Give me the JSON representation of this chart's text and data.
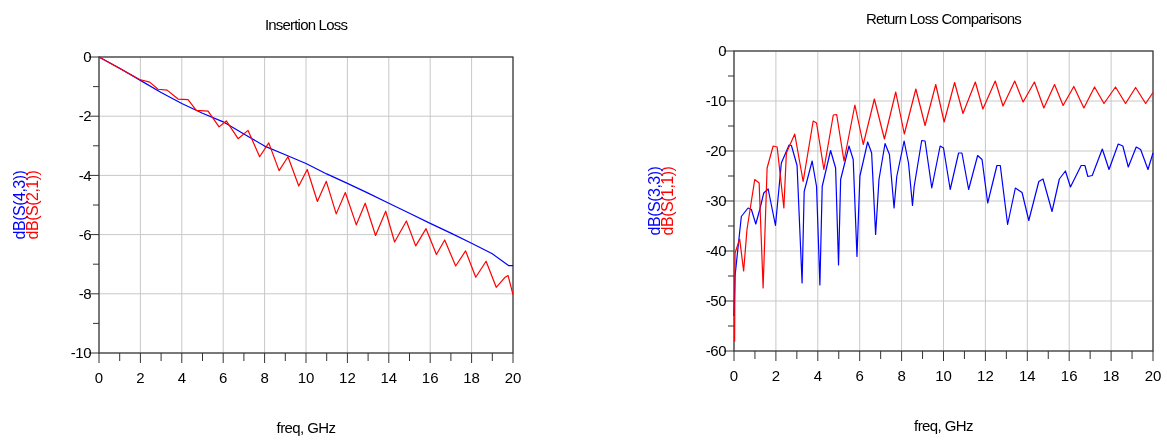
{
  "chart_data": [
    {
      "type": "line",
      "title": "Insertion Loss",
      "xlabel": "freq, GHz",
      "xlim": [
        0,
        20
      ],
      "ylim": [
        -10,
        0
      ],
      "grid": true,
      "xticks": [
        0,
        {
          "value": 1,
          "label": null
        },
        2,
        {
          "value": 3,
          "label": null
        },
        4,
        {
          "value": 5,
          "label": null
        },
        6,
        {
          "value": 7,
          "label": null
        },
        8,
        {
          "value": 9,
          "label": null
        },
        10,
        {
          "value": 11,
          "label": null
        },
        12,
        {
          "value": 13,
          "label": null
        },
        14,
        {
          "value": 15,
          "label": null
        },
        16,
        {
          "value": 17,
          "label": null
        },
        18,
        {
          "value": 19,
          "label": null
        },
        20
      ],
      "yticks": [
        -10,
        {
          "value": -9,
          "label": null
        },
        -8,
        {
          "value": -7,
          "label": null
        },
        -6,
        {
          "value": -5,
          "label": null
        },
        -4,
        {
          "value": -3,
          "label": null
        },
        -2,
        {
          "value": -1,
          "label": null
        },
        0
      ],
      "series": [
        {
          "name": "dB(S(4,3))",
          "color": "#0000ff",
          "x": [
            0,
            1,
            2,
            3,
            4,
            5,
            6,
            7,
            8,
            9,
            10,
            11,
            12,
            13,
            14,
            15,
            16,
            17,
            18,
            19,
            19.8,
            20
          ],
          "values": [
            0,
            -0.38,
            -0.79,
            -1.2,
            -1.57,
            -1.9,
            -2.19,
            -2.6,
            -3.01,
            -3.3,
            -3.6,
            -3.95,
            -4.27,
            -4.6,
            -4.94,
            -5.28,
            -5.62,
            -5.95,
            -6.29,
            -6.65,
            -7.05,
            -7.05
          ]
        },
        {
          "name": "dB(S(2,1))",
          "color": "#ff0000",
          "x": [
            0,
            1.96,
            2.45,
            2.85,
            3.29,
            3.82,
            4.3,
            4.7,
            5.27,
            5.8,
            6.15,
            6.72,
            7.2,
            7.76,
            8.2,
            8.7,
            9.13,
            9.65,
            10.06,
            10.55,
            10.98,
            11.46,
            11.9,
            12.43,
            12.86,
            13.36,
            13.85,
            14.28,
            14.85,
            15.3,
            15.8,
            16.3,
            16.7,
            17.23,
            17.71,
            18.2,
            18.7,
            19.19,
            19.6,
            19.76,
            20
          ],
          "values": [
            0,
            -0.76,
            -0.85,
            -1.09,
            -1.12,
            -1.42,
            -1.44,
            -1.8,
            -1.83,
            -2.36,
            -2.16,
            -2.76,
            -2.48,
            -3.37,
            -2.9,
            -3.84,
            -3.37,
            -4.36,
            -3.8,
            -4.88,
            -4.2,
            -5.3,
            -4.58,
            -5.67,
            -4.94,
            -6.03,
            -5.21,
            -6.25,
            -5.54,
            -6.38,
            -5.8,
            -6.67,
            -6.18,
            -7.06,
            -6.55,
            -7.44,
            -6.9,
            -7.78,
            -7.45,
            -7.38,
            -8.03
          ]
        }
      ]
    },
    {
      "type": "line",
      "title": "Return Loss Comparisons",
      "xlabel": "freq, GHz",
      "xlim": [
        0,
        20
      ],
      "ylim": [
        -60,
        0
      ],
      "grid": true,
      "xticks": [
        0,
        {
          "value": 1,
          "label": null
        },
        2,
        {
          "value": 3,
          "label": null
        },
        4,
        {
          "value": 5,
          "label": null
        },
        6,
        {
          "value": 7,
          "label": null
        },
        8,
        {
          "value": 9,
          "label": null
        },
        10,
        {
          "value": 11,
          "label": null
        },
        12,
        {
          "value": 13,
          "label": null
        },
        14,
        {
          "value": 15,
          "label": null
        },
        16,
        {
          "value": 17,
          "label": null
        },
        18,
        {
          "value": 19,
          "label": null
        },
        20
      ],
      "yticks": [
        -60,
        {
          "value": -55,
          "label": null
        },
        -50,
        {
          "value": -45,
          "label": null
        },
        -40,
        {
          "value": -35,
          "label": null
        },
        -30,
        {
          "value": -25,
          "label": null
        },
        -20,
        {
          "value": -15,
          "label": null
        },
        -10,
        {
          "value": -5,
          "label": null
        },
        0
      ],
      "series": [
        {
          "name": "dB(S(3,3))",
          "color": "#0000ff",
          "x": [
            0,
            0.05,
            0.19,
            0.35,
            0.67,
            0.83,
            1.04,
            1.23,
            1.42,
            1.63,
            1.98,
            2.26,
            2.63,
            2.74,
            3.01,
            3.25,
            3.35,
            3.73,
            3.94,
            4.1,
            4.21,
            4.61,
            4.85,
            4.99,
            5.09,
            5.49,
            5.69,
            5.87,
            6.01,
            6.38,
            6.57,
            6.76,
            6.92,
            7.21,
            7.42,
            7.64,
            7.77,
            8.12,
            8.33,
            8.52,
            8.6,
            8.96,
            9.12,
            9.44,
            9.84,
            10,
            10.32,
            10.72,
            10.88,
            11.2,
            11.63,
            11.84,
            12.11,
            12.55,
            12.71,
            13.06,
            13.43,
            13.75,
            14.07,
            14.55,
            14.75,
            15.18,
            15.53,
            15.82,
            16.06,
            16.57,
            16.75,
            16.89,
            17.1,
            17.58,
            17.9,
            18.34,
            18.56,
            18.82,
            19.2,
            19.41,
            19.76,
            20
          ],
          "values": [
            -53,
            -45,
            -39.4,
            -33.1,
            -31.4,
            -31.7,
            -34.6,
            -31.7,
            -28.4,
            -27.6,
            -34.9,
            -22.4,
            -18.8,
            -18.9,
            -22.9,
            -46.4,
            -28.1,
            -22,
            -27.1,
            -46.8,
            -27.1,
            -19.9,
            -23.4,
            -42.8,
            -25.7,
            -19,
            -21.7,
            -41.1,
            -25,
            -18.2,
            -20.4,
            -36.7,
            -25.7,
            -18.5,
            -20.7,
            -31.4,
            -25.1,
            -18,
            -22.4,
            -30.9,
            -27.1,
            -17.9,
            -18,
            -27.4,
            -19,
            -19.4,
            -27.7,
            -20.4,
            -20.4,
            -27.7,
            -20.9,
            -21.7,
            -30.4,
            -22.9,
            -22.9,
            -34.7,
            -27.4,
            -28.3,
            -33.9,
            -26.1,
            -25.6,
            -32.1,
            -25.6,
            -24,
            -27.2,
            -22.9,
            -22.9,
            -25.1,
            -24.9,
            -19.6,
            -23.7,
            -18.6,
            -19,
            -23.2,
            -19.2,
            -19.7,
            -23.7,
            -20.4
          ]
        },
        {
          "name": "dB(S(1,1))",
          "color": "#ff0000",
          "x": [
            0.03,
            0.05,
            0.27,
            0.46,
            0.62,
            0.99,
            1.2,
            1.39,
            1.58,
            1.87,
            2.06,
            2.38,
            2.5,
            2.9,
            3.3,
            3.78,
            3.94,
            4.29,
            4.74,
            4.9,
            5.25,
            5.77,
            6.17,
            6.7,
            7.18,
            7.72,
            8.13,
            8.68,
            9.12,
            9.63,
            10.03,
            10.53,
            10.93,
            11.52,
            11.88,
            12.47,
            12.84,
            13.4,
            13.8,
            14.34,
            14.79,
            15.3,
            15.71,
            16.22,
            16.7,
            17.21,
            17.66,
            18.21,
            18.69,
            19.17,
            19.65,
            20
          ],
          "values": [
            -58.1,
            -40.4,
            -37.6,
            -44,
            -35.7,
            -25.7,
            -26.4,
            -47.4,
            -23.4,
            -19,
            -19.2,
            -31.4,
            -20.4,
            -16.6,
            -26.1,
            -14,
            -14.4,
            -23.7,
            -12.8,
            -12.7,
            -22,
            -10.8,
            -18.7,
            -9.6,
            -17.6,
            -8.2,
            -16.6,
            -7.6,
            -14.9,
            -6.7,
            -14.2,
            -6.3,
            -12.5,
            -6.2,
            -11.6,
            -6,
            -11,
            -6,
            -10.2,
            -6.2,
            -11.4,
            -6.7,
            -10.9,
            -7.1,
            -11.4,
            -7.2,
            -10.5,
            -7.2,
            -10.5,
            -7.3,
            -10.5,
            -8.3
          ]
        }
      ]
    }
  ]
}
